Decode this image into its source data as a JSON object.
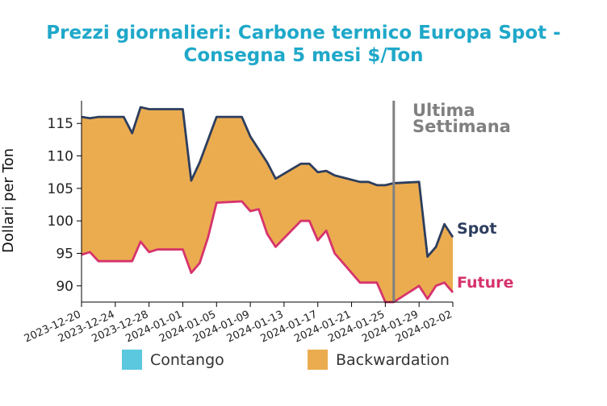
{
  "chart_data": {
    "type": "area",
    "title": [
      "Prezzi giornalieri: Carbone termico Europa Spot -",
      "Consegna 5 mesi $/Ton"
    ],
    "ylabel": "Dollari per Ton",
    "xlabel": "",
    "ylim": [
      87.5,
      118.5
    ],
    "yticks": [
      90,
      95,
      100,
      105,
      110,
      115
    ],
    "xticks": [
      "2023-12-20",
      "2023-12-24",
      "2023-12-28",
      "2024-01-01",
      "2024-01-05",
      "2024-01-09",
      "2024-01-13",
      "2024-01-17",
      "2024-01-21",
      "2024-01-25",
      "2024-01-29",
      "2024-02-02"
    ],
    "x": [
      "2023-12-20",
      "2023-12-21",
      "2023-12-22",
      "2023-12-25",
      "2023-12-26",
      "2023-12-27",
      "2023-12-28",
      "2023-12-29",
      "2024-01-01",
      "2024-01-02",
      "2024-01-03",
      "2024-01-04",
      "2024-01-05",
      "2024-01-08",
      "2024-01-09",
      "2024-01-10",
      "2024-01-11",
      "2024-01-12",
      "2024-01-15",
      "2024-01-16",
      "2024-01-17",
      "2024-01-18",
      "2024-01-19",
      "2024-01-22",
      "2024-01-23",
      "2024-01-24",
      "2024-01-25",
      "2024-01-26",
      "2024-01-29",
      "2024-01-30",
      "2024-01-31",
      "2024-02-01",
      "2024-02-02"
    ],
    "series": [
      {
        "name": "Spot",
        "color": "#2d3e5e",
        "values": [
          116.0,
          115.8,
          116.0,
          116.0,
          113.5,
          117.5,
          117.2,
          117.2,
          117.2,
          106.2,
          109.0,
          112.5,
          116.0,
          116.0,
          113.0,
          111.0,
          109.0,
          106.5,
          108.8,
          108.8,
          107.5,
          107.7,
          107.0,
          106.0,
          106.0,
          105.5,
          105.5,
          105.8,
          106.0,
          94.5,
          96.0,
          99.5,
          97.5
        ]
      },
      {
        "name": "Future",
        "color": "#d6336c",
        "values": [
          94.8,
          95.2,
          93.8,
          93.8,
          93.8,
          96.8,
          95.2,
          95.6,
          95.6,
          92.0,
          93.5,
          97.5,
          102.8,
          103.0,
          101.5,
          101.8,
          98.0,
          96.0,
          100.0,
          100.0,
          97.0,
          98.5,
          95.0,
          90.5,
          90.5,
          90.5,
          87.5,
          87.5,
          90.0,
          88.0,
          90.0,
          90.5,
          89.0
        ]
      }
    ],
    "legend": [
      {
        "label": "Contango",
        "color": "#5bc8df"
      },
      {
        "label": "Backwardation",
        "color": "#ebac4f"
      }
    ],
    "legend_position": "bottom",
    "annotation": {
      "text": [
        "Ultima",
        "Settimana"
      ],
      "x": "2024-01-26",
      "color": "#808080"
    },
    "fill_color": "#ebac4f",
    "grid": false
  }
}
